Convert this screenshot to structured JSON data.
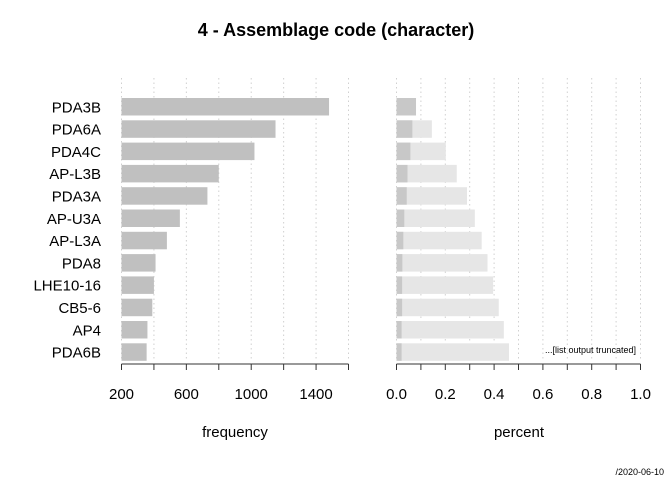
{
  "chart_data": [
    {
      "type": "bar",
      "orientation": "horizontal",
      "title": "4 - Assemblage code (character)",
      "categories": [
        "PDA3B",
        "PDA6A",
        "PDA4C",
        "AP-L3B",
        "PDA3A",
        "AP-U3A",
        "AP-L3A",
        "PDA8",
        "LHE10-16",
        "CB5-6",
        "AP4",
        "PDA6B"
      ],
      "values": [
        1480,
        1150,
        1020,
        800,
        730,
        560,
        480,
        410,
        400,
        390,
        360,
        355
      ],
      "xlabel": "frequency",
      "xlim": [
        200,
        1600
      ],
      "xticks": [
        200,
        600,
        1000,
        1400
      ],
      "xtick_labels": [
        "200",
        "600",
        "1000",
        "1400"
      ],
      "grid": "vertical dotted",
      "bar_color": "#c0c0c0"
    },
    {
      "type": "bar",
      "orientation": "horizontal",
      "categories": [
        "PDA3B",
        "PDA6A",
        "PDA4C",
        "AP-L3B",
        "PDA3A",
        "AP-U3A",
        "AP-L3A",
        "PDA8",
        "LHE10-16",
        "CB5-6",
        "AP4",
        "PDA6B"
      ],
      "series": [
        {
          "values": [
            0.08,
            0.065,
            0.057,
            0.045,
            0.042,
            0.032,
            0.028,
            0.024,
            0.023,
            0.023,
            0.021,
            0.021
          ],
          "color": "#c8c8c8"
        },
        {
          "values": [
            0.08,
            0.145,
            0.202,
            0.247,
            0.289,
            0.321,
            0.349,
            0.373,
            0.396,
            0.419,
            0.44,
            0.461
          ],
          "color": "#e6e6e6"
        }
      ],
      "xlabel": "percent",
      "xlim": [
        0,
        1
      ],
      "xticks": [
        0,
        0.2,
        0.4,
        0.6,
        0.8,
        1.0
      ],
      "xtick_labels": [
        "0.0",
        "0.2",
        "0.4",
        "0.6",
        "0.8",
        "1.0"
      ],
      "grid": "vertical dotted",
      "annotation": "...[list output truncated]"
    }
  ],
  "footer": {
    "date": "/2020-06-10"
  }
}
